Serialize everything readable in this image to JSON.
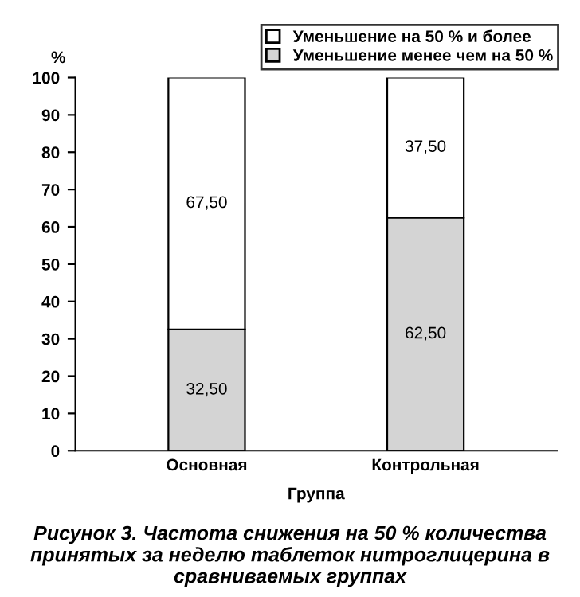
{
  "chart_data": {
    "type": "bar",
    "stacked": true,
    "categories": [
      "Основная",
      "Контрольная"
    ],
    "series": [
      {
        "name": "Уменьшение менее чем на 50 %",
        "color": "#d4d4d4",
        "values": [
          32.5,
          62.5
        ],
        "value_labels": [
          "32,50",
          "62,50"
        ]
      },
      {
        "name": "Уменьшение на 50 % и более",
        "color": "#ffffff",
        "values": [
          67.5,
          37.5
        ],
        "value_labels": [
          "67,50",
          "37,50"
        ]
      }
    ],
    "ylim": [
      0,
      100
    ],
    "yticks": [
      0,
      10,
      20,
      30,
      40,
      50,
      60,
      70,
      80,
      90,
      100
    ],
    "ylabel": "%",
    "xlabel": "Группа",
    "legend": "top right",
    "grid": false,
    "annotations": [
      "Рисунок 3. Частота снижения на 50 % количества принятых за неделю таблеток нитроглицерина в сравниваемых группах"
    ]
  }
}
